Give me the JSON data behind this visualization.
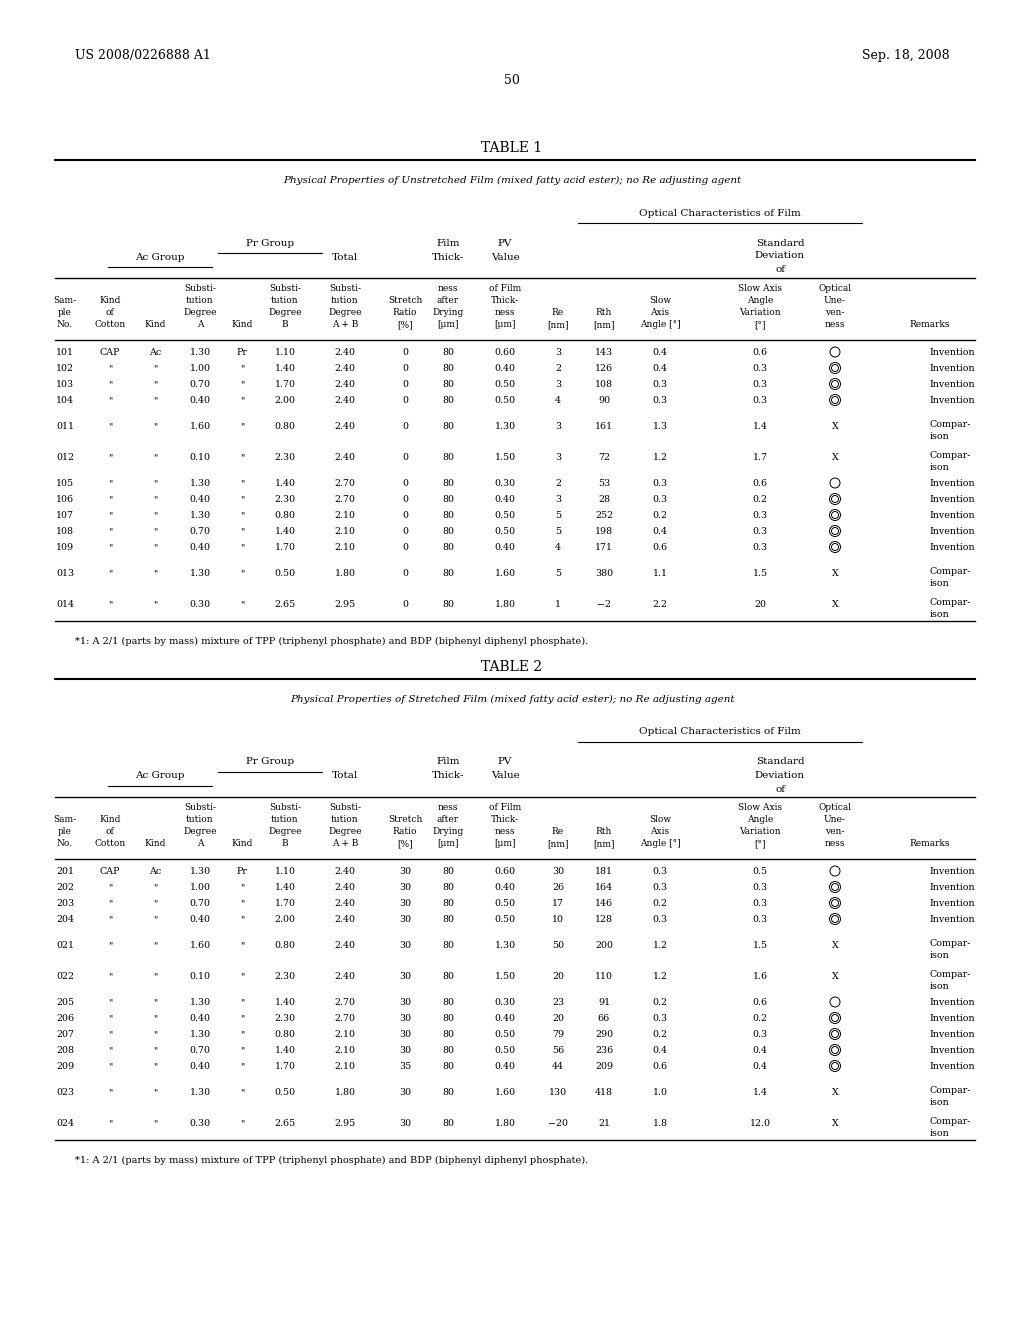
{
  "header_left": "US 2008/0226888 A1",
  "header_right": "Sep. 18, 2008",
  "page_number": "50",
  "table1_title": "TABLE 1",
  "table1_subtitle": "Physical Properties of Unstretched Film (mixed fatty acid ester); no Re adjusting agent",
  "table2_title": "TABLE 2",
  "table2_subtitle": "Physical Properties of Stretched Film (mixed fatty acid ester); no Re adjusting agent",
  "footnote": "*1: A 2/1 (parts by mass) mixture of TPP (triphenyl phosphate) and BDP (biphenyl diphenyl phosphate).",
  "table1_data": [
    [
      "101",
      "CAP",
      "Ac",
      "1.30",
      "Pr",
      "1.10",
      "2.40",
      "0",
      "80",
      "0.60",
      "3",
      "143",
      "0.4",
      "0.6",
      "O",
      "Invention"
    ],
    [
      "102",
      "\"",
      "\"",
      "1.00",
      "\"",
      "1.40",
      "2.40",
      "0",
      "80",
      "0.40",
      "2",
      "126",
      "0.4",
      "0.3",
      "O2",
      "Invention"
    ],
    [
      "103",
      "\"",
      "\"",
      "0.70",
      "\"",
      "1.70",
      "2.40",
      "0",
      "80",
      "0.50",
      "3",
      "108",
      "0.3",
      "0.3",
      "O2",
      "Invention"
    ],
    [
      "104",
      "\"",
      "\"",
      "0.40",
      "\"",
      "2.00",
      "2.40",
      "0",
      "80",
      "0.50",
      "4",
      "90",
      "0.3",
      "0.3",
      "O2",
      "Invention"
    ],
    [
      "011",
      "\"",
      "\"",
      "1.60",
      "\"",
      "0.80",
      "2.40",
      "0",
      "80",
      "1.30",
      "3",
      "161",
      "1.3",
      "1.4",
      "X",
      "Compar-|ison"
    ],
    [
      "012",
      "\"",
      "\"",
      "0.10",
      "\"",
      "2.30",
      "2.40",
      "0",
      "80",
      "1.50",
      "3",
      "72",
      "1.2",
      "1.7",
      "X",
      "Compar-|ison"
    ],
    [
      "105",
      "\"",
      "\"",
      "1.30",
      "\"",
      "1.40",
      "2.70",
      "0",
      "80",
      "0.30",
      "2",
      "53",
      "0.3",
      "0.6",
      "O",
      "Invention"
    ],
    [
      "106",
      "\"",
      "\"",
      "0.40",
      "\"",
      "2.30",
      "2.70",
      "0",
      "80",
      "0.40",
      "3",
      "28",
      "0.3",
      "0.2",
      "O2",
      "Invention"
    ],
    [
      "107",
      "\"",
      "\"",
      "1.30",
      "\"",
      "0.80",
      "2.10",
      "0",
      "80",
      "0.50",
      "5",
      "252",
      "0.2",
      "0.3",
      "O2",
      "Invention"
    ],
    [
      "108",
      "\"",
      "\"",
      "0.70",
      "\"",
      "1.40",
      "2.10",
      "0",
      "80",
      "0.50",
      "5",
      "198",
      "0.4",
      "0.3",
      "O2",
      "Invention"
    ],
    [
      "109",
      "\"",
      "\"",
      "0.40",
      "\"",
      "1.70",
      "2.10",
      "0",
      "80",
      "0.40",
      "4",
      "171",
      "0.6",
      "0.3",
      "O2",
      "Invention"
    ],
    [
      "013",
      "\"",
      "\"",
      "1.30",
      "\"",
      "0.50",
      "1.80",
      "0",
      "80",
      "1.60",
      "5",
      "380",
      "1.1",
      "1.5",
      "X",
      "Compar-|ison"
    ],
    [
      "014",
      "\"",
      "\"",
      "0.30",
      "\"",
      "2.65",
      "2.95",
      "0",
      "80",
      "1.80",
      "1",
      "−2",
      "2.2",
      "20",
      "X",
      "Compar-|ison"
    ]
  ],
  "table2_data": [
    [
      "201",
      "CAP",
      "Ac",
      "1.30",
      "Pr",
      "1.10",
      "2.40",
      "30",
      "80",
      "0.60",
      "30",
      "181",
      "0.3",
      "0.5",
      "O",
      "Invention"
    ],
    [
      "202",
      "\"",
      "\"",
      "1.00",
      "\"",
      "1.40",
      "2.40",
      "30",
      "80",
      "0.40",
      "26",
      "164",
      "0.3",
      "0.3",
      "O2",
      "Invention"
    ],
    [
      "203",
      "\"",
      "\"",
      "0.70",
      "\"",
      "1.70",
      "2.40",
      "30",
      "80",
      "0.50",
      "17",
      "146",
      "0.2",
      "0.3",
      "O2",
      "Invention"
    ],
    [
      "204",
      "\"",
      "\"",
      "0.40",
      "\"",
      "2.00",
      "2.40",
      "30",
      "80",
      "0.50",
      "10",
      "128",
      "0.3",
      "0.3",
      "O2",
      "Invention"
    ],
    [
      "021",
      "\"",
      "\"",
      "1.60",
      "\"",
      "0.80",
      "2.40",
      "30",
      "80",
      "1.30",
      "50",
      "200",
      "1.2",
      "1.5",
      "X",
      "Compar-|ison"
    ],
    [
      "022",
      "\"",
      "\"",
      "0.10",
      "\"",
      "2.30",
      "2.40",
      "30",
      "80",
      "1.50",
      "20",
      "110",
      "1.2",
      "1.6",
      "X",
      "Compar-|ison"
    ],
    [
      "205",
      "\"",
      "\"",
      "1.30",
      "\"",
      "1.40",
      "2.70",
      "30",
      "80",
      "0.30",
      "23",
      "91",
      "0.2",
      "0.6",
      "O",
      "Invention"
    ],
    [
      "206",
      "\"",
      "\"",
      "0.40",
      "\"",
      "2.30",
      "2.70",
      "30",
      "80",
      "0.40",
      "20",
      "66",
      "0.3",
      "0.2",
      "O2",
      "Invention"
    ],
    [
      "207",
      "\"",
      "\"",
      "1.30",
      "\"",
      "0.80",
      "2.10",
      "30",
      "80",
      "0.50",
      "79",
      "290",
      "0.2",
      "0.3",
      "O2",
      "Invention"
    ],
    [
      "208",
      "\"",
      "\"",
      "0.70",
      "\"",
      "1.40",
      "2.10",
      "30",
      "80",
      "0.50",
      "56",
      "236",
      "0.4",
      "0.4",
      "O2",
      "Invention"
    ],
    [
      "209",
      "\"",
      "\"",
      "0.40",
      "\"",
      "1.70",
      "2.10",
      "35",
      "80",
      "0.40",
      "44",
      "209",
      "0.6",
      "0.4",
      "O2",
      "Invention"
    ],
    [
      "023",
      "\"",
      "\"",
      "1.30",
      "\"",
      "0.50",
      "1.80",
      "30",
      "80",
      "1.60",
      "130",
      "418",
      "1.0",
      "1.4",
      "X",
      "Compar-|ison"
    ],
    [
      "024",
      "\"",
      "\"",
      "0.30",
      "\"",
      "2.65",
      "2.95",
      "30",
      "80",
      "1.80",
      "−20",
      "21",
      "1.8",
      "12.0",
      "X",
      "Compar-|ison"
    ]
  ],
  "gap_after_samples": [
    "104",
    "011",
    "012",
    "109",
    "013",
    "204",
    "021",
    "022",
    "209",
    "023"
  ]
}
